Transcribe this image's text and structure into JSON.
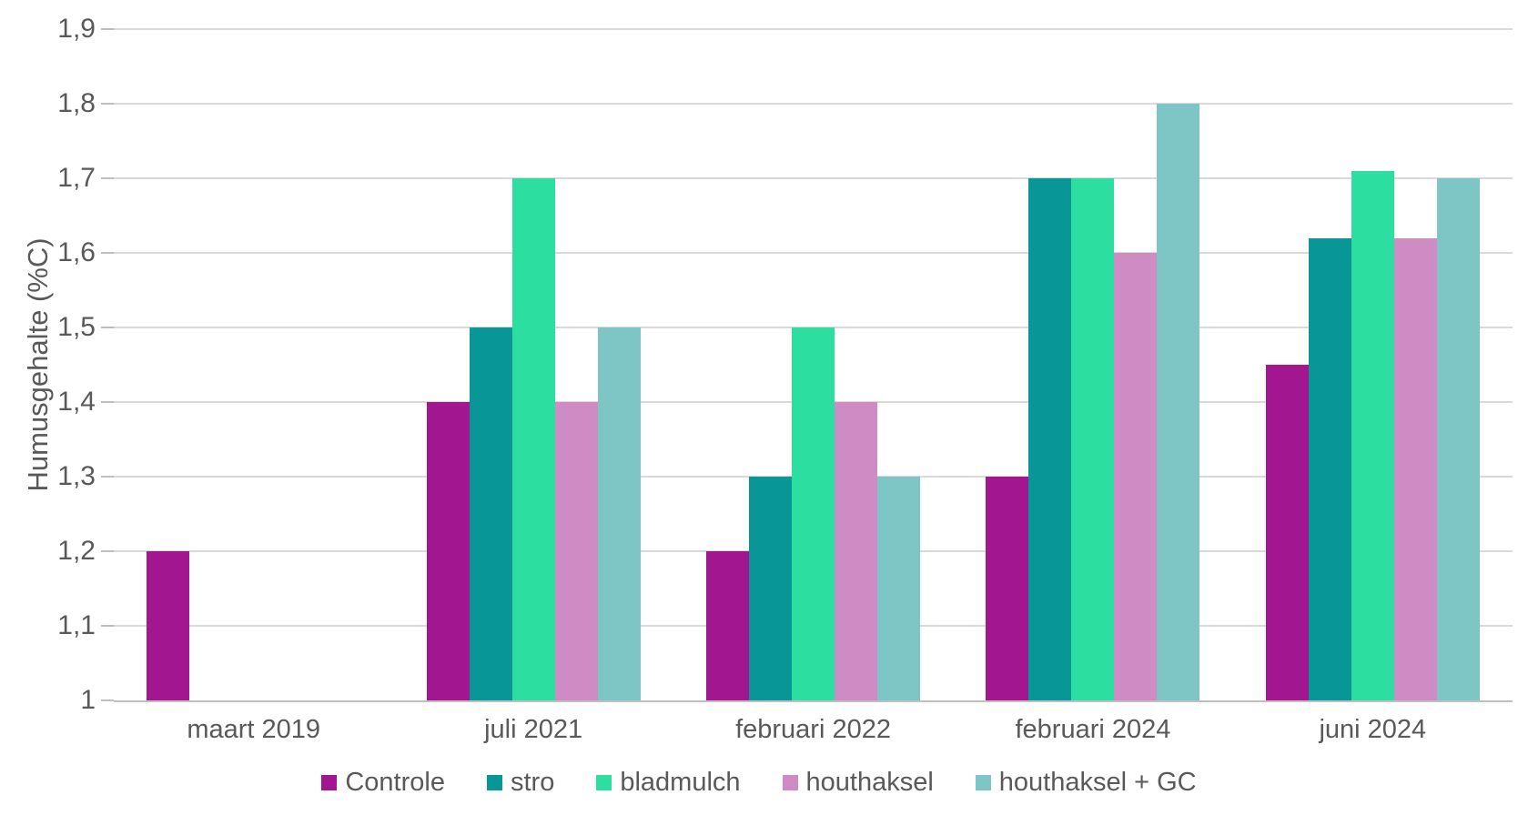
{
  "chart_data": {
    "type": "bar",
    "title": "",
    "xlabel": "",
    "ylabel": "Humusgehalte (%C)",
    "ylim": [
      1,
      1.9
    ],
    "grid": true,
    "legend_position": "bottom",
    "axis_colors": {
      "gridline": "#d9d9d9",
      "axis_line": "#bfbfbf",
      "text": "#595959"
    },
    "yticks": [
      {
        "value": 1.0,
        "label": "1"
      },
      {
        "value": 1.1,
        "label": "1,1"
      },
      {
        "value": 1.2,
        "label": "1,2"
      },
      {
        "value": 1.3,
        "label": "1,3"
      },
      {
        "value": 1.4,
        "label": "1,4"
      },
      {
        "value": 1.5,
        "label": "1,5"
      },
      {
        "value": 1.6,
        "label": "1,6"
      },
      {
        "value": 1.7,
        "label": "1,7"
      },
      {
        "value": 1.8,
        "label": "1,8"
      },
      {
        "value": 1.9,
        "label": "1,9"
      }
    ],
    "categories": [
      "maart 2019",
      "juli 2021",
      "februari 2022",
      "februari 2024",
      "juni 2024"
    ],
    "series": [
      {
        "name": "Controle",
        "color": "#A21690",
        "values": [
          1.2,
          1.4,
          1.2,
          1.3,
          1.45
        ]
      },
      {
        "name": "stro",
        "color": "#089696",
        "values": [
          null,
          1.5,
          1.3,
          1.7,
          1.62
        ]
      },
      {
        "name": "bladmulch",
        "color": "#2CDEA0",
        "values": [
          null,
          1.7,
          1.5,
          1.7,
          1.71
        ]
      },
      {
        "name": "houthaksel",
        "color": "#CE8BC4",
        "values": [
          null,
          1.4,
          1.4,
          1.6,
          1.62
        ]
      },
      {
        "name": "houthaksel + GC",
        "color": "#7EC6C6",
        "values": [
          null,
          1.5,
          1.3,
          1.8,
          1.7
        ]
      }
    ]
  }
}
